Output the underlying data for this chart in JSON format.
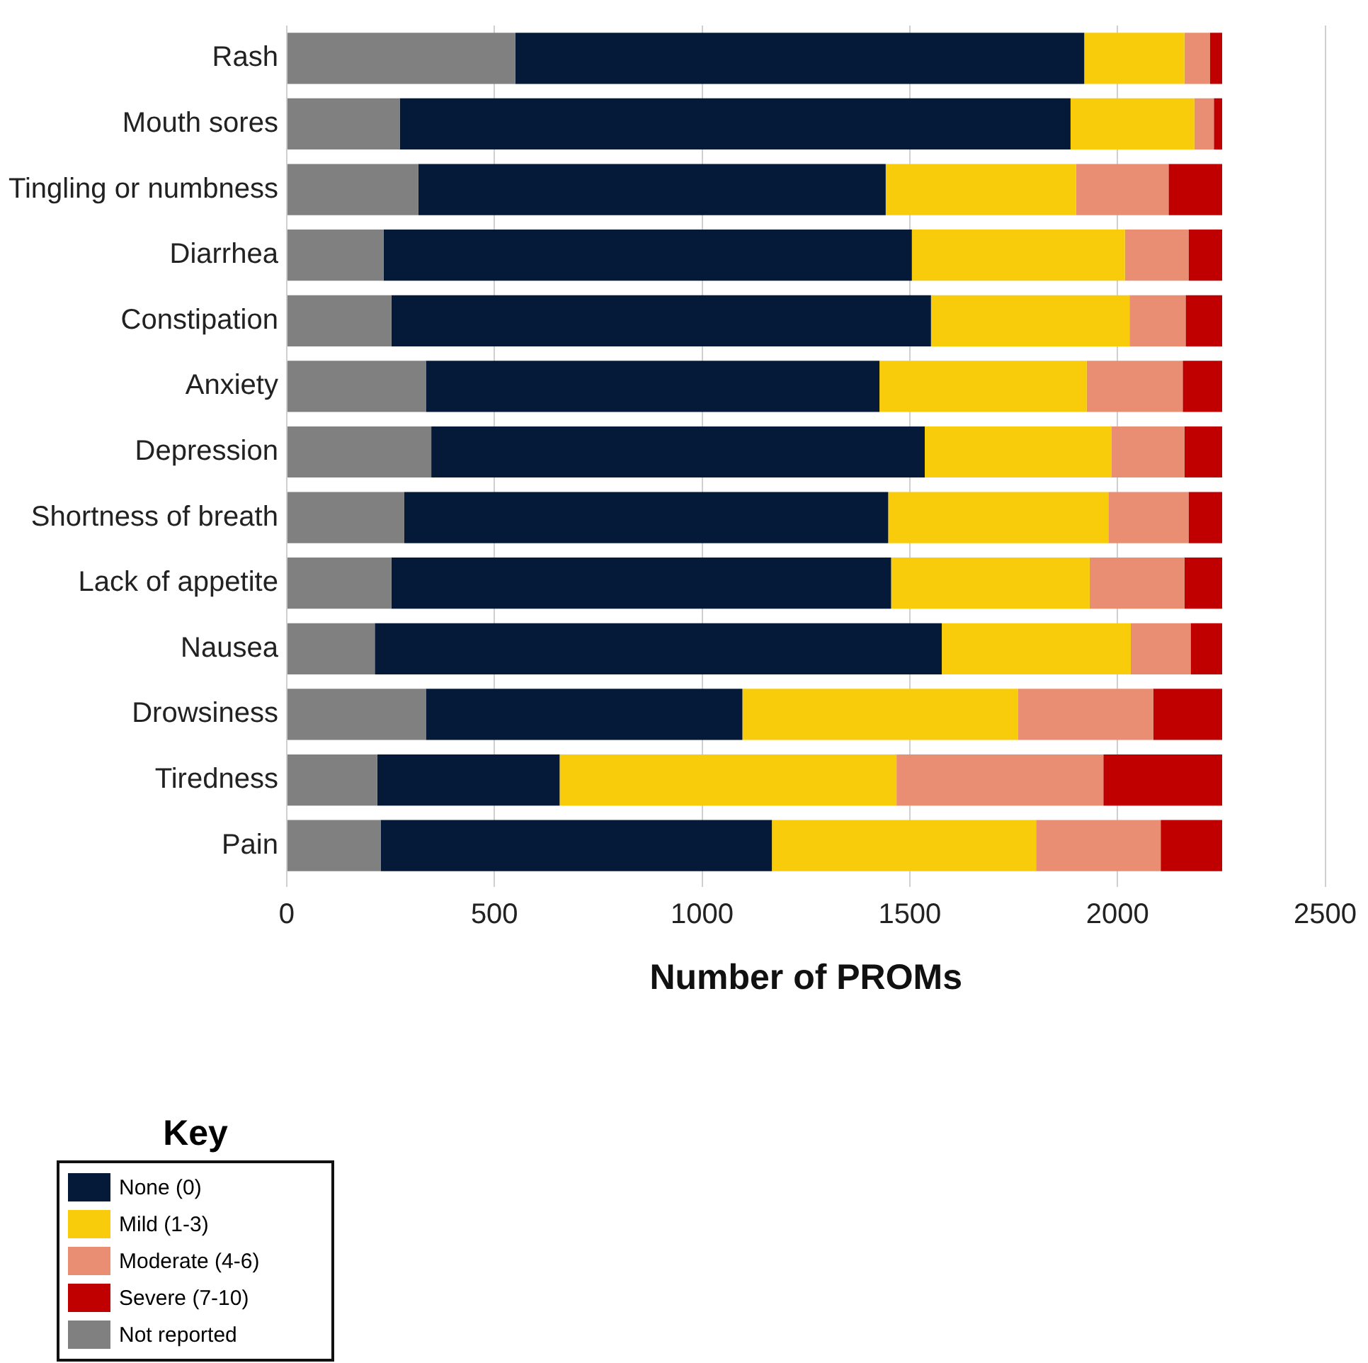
{
  "chart_data": {
    "type": "bar",
    "orientation": "horizontal",
    "stacked": true,
    "xlabel": "Number of PROMs",
    "legend_title": "Key",
    "legend": "bottom left",
    "grid": "x",
    "categories": [
      "Rash",
      "Mouth sores",
      "Tingling or numbness",
      "Diarrhea",
      "Constipation",
      "Anxiety",
      "Depression",
      "Shortness of breath",
      "Lack of appetite",
      "Nausea",
      "Drowsiness",
      "Tiredness",
      "Pain"
    ],
    "xlim": [
      0,
      2500
    ],
    "xticks": [
      0,
      500,
      1000,
      1500,
      2000,
      2500
    ],
    "series": [
      {
        "name": "Not reported",
        "color": "#808080",
        "values": [
          550,
          272,
          317,
          233,
          252,
          335,
          348,
          283,
          252,
          212,
          335,
          218,
          226
        ]
      },
      {
        "name": "None (0)",
        "color": "#051a38",
        "values": [
          1370,
          1615,
          1125,
          1272,
          1299,
          1092,
          1188,
          1165,
          1203,
          1365,
          762,
          439,
          942
        ]
      },
      {
        "name": "Mild (1-3)",
        "color": "#f8cb0b",
        "values": [
          241,
          298,
          458,
          513,
          478,
          499,
          449,
          530,
          478,
          455,
          663,
          811,
          636
        ]
      },
      {
        "name": "Moderate (4-6)",
        "color": "#e98e72",
        "values": [
          62,
          47,
          223,
          153,
          135,
          231,
          176,
          193,
          228,
          144,
          326,
          498,
          300
        ]
      },
      {
        "name": "Severe (7-10)",
        "color": "#c00000",
        "values": [
          29,
          20,
          129,
          81,
          88,
          95,
          91,
          81,
          91,
          76,
          166,
          286,
          148
        ]
      }
    ]
  }
}
